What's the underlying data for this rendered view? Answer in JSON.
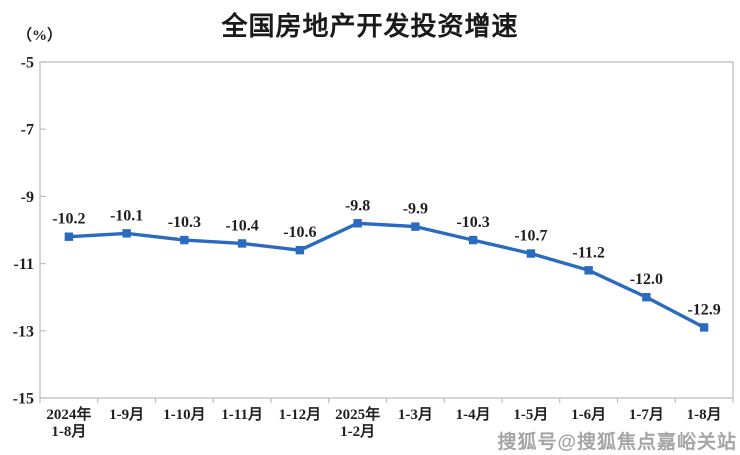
{
  "title": "全国房地产开发投资增速",
  "unit_label": "（%）",
  "watermark": "搜狐号@搜狐焦点嘉峪关站",
  "colors": {
    "line": "#2A6BBF",
    "marker": "#2A6BBF",
    "title_text": "#1a1a1a",
    "label_text": "#1f1f1f",
    "axis_border": "#C8C8C8",
    "tick": "#BFBFBF",
    "watermark_gray": "#989898"
  },
  "chart_data": {
    "type": "line",
    "title": "全国房地产开发投资增速",
    "ylabel": "（%）",
    "categories": [
      "2024年\n1-8月",
      "1-9月",
      "1-10月",
      "1-11月",
      "1-12月",
      "2025年\n1-2月",
      "1-3月",
      "1-4月",
      "1-5月",
      "1-6月",
      "1-7月",
      "1-8月"
    ],
    "values": [
      -10.2,
      -10.1,
      -10.3,
      -10.4,
      -10.6,
      -9.8,
      -9.9,
      -10.3,
      -10.7,
      -11.2,
      -12.0,
      -12.9
    ],
    "data_labels": [
      "-10.2",
      "-10.1",
      "-10.3",
      "-10.4",
      "-10.6",
      "-9.8",
      "-9.9",
      "-10.3",
      "-10.7",
      "-11.2",
      "-12.0",
      "-12.9"
    ],
    "ylim": [
      -15,
      -5
    ],
    "yticks": [
      -5,
      -7,
      -9,
      -11,
      -13,
      -15
    ],
    "grid": false,
    "legend": "none",
    "marker": "square",
    "series_name": "全国房地产开发投资增速"
  }
}
